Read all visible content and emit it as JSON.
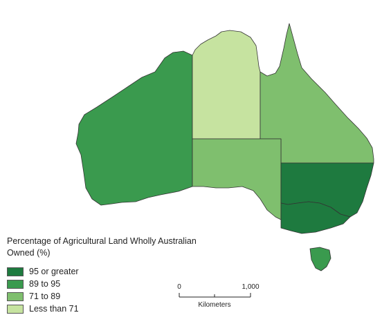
{
  "legend": {
    "title": "Percentage of Agricultural Land Wholly Australian Owned (%)",
    "items": [
      {
        "label": "95 or greater",
        "color": "#1e7a3f"
      },
      {
        "label": "89 to 95",
        "color": "#3a9a4e"
      },
      {
        "label": "71 to 89",
        "color": "#7fbf6e"
      },
      {
        "label": "Less than 71",
        "color": "#c6e3a0"
      }
    ]
  },
  "regions": [
    {
      "name": "Western Australia",
      "category": "89 to 95"
    },
    {
      "name": "Northern Territory",
      "category": "Less than 71"
    },
    {
      "name": "Queensland",
      "category": "71 to 89"
    },
    {
      "name": "South Australia",
      "category": "71 to 89"
    },
    {
      "name": "New South Wales",
      "category": "95 or greater"
    },
    {
      "name": "Victoria",
      "category": "95 or greater"
    },
    {
      "name": "Tasmania",
      "category": "89 to 95"
    }
  ],
  "scale_bar": {
    "ticks": [
      "0",
      "1,000"
    ],
    "unit": "Kilometers"
  }
}
